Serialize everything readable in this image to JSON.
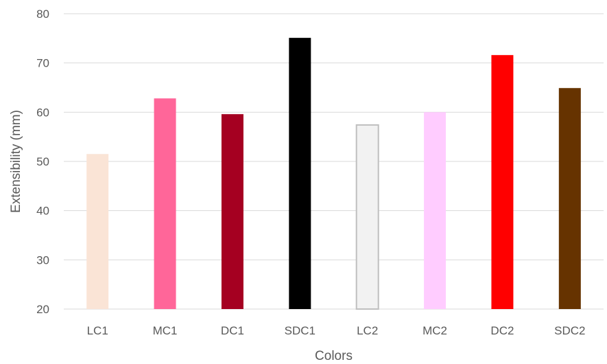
{
  "chart_data": {
    "type": "bar",
    "xlabel": "Colors",
    "ylabel": "Extensibility (mm)",
    "ylim": [
      20,
      80
    ],
    "yticks": [
      20,
      30,
      40,
      50,
      60,
      70,
      80
    ],
    "grid": true,
    "categories": [
      "LC1",
      "MC1",
      "DC1",
      "SDC1",
      "LC2",
      "MC2",
      "DC2",
      "SDC2"
    ],
    "values": [
      51.5,
      62.8,
      59.6,
      75.1,
      57.4,
      60.0,
      71.6,
      64.9
    ],
    "colors": [
      "#FAE4D6",
      "#FF6699",
      "#A50021",
      "#000000",
      "#F2F2F2",
      "#FFCCFF",
      "#FF0000",
      "#663300"
    ],
    "outline_colors": [
      "none",
      "none",
      "none",
      "none",
      "#BFBFBF",
      "none",
      "none",
      "none"
    ]
  }
}
